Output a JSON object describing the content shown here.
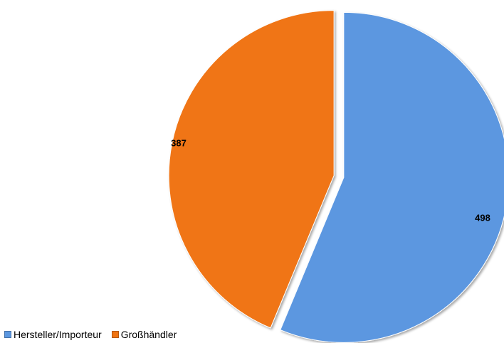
{
  "chart_data": {
    "type": "pie",
    "title": "",
    "slices": [
      {
        "label": "Hersteller/Importeur",
        "value": 498,
        "color": "#5B97E0"
      },
      {
        "label": "Großhändler",
        "value": 387,
        "color": "#F07412"
      }
    ],
    "data_labels": [
      "498",
      "387"
    ],
    "legend_position": "bottom-left",
    "exploded": true
  }
}
